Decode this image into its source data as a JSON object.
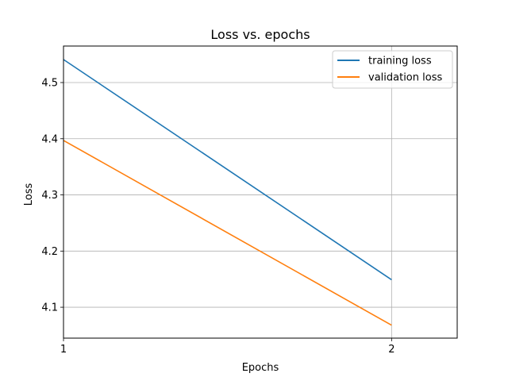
{
  "chart_data": {
    "type": "line",
    "title": "Loss vs. epochs",
    "xlabel": "Epochs",
    "ylabel": "Loss",
    "x": [
      1,
      2
    ],
    "x_ticks": [
      "1",
      "2"
    ],
    "y_ticks": [
      "4.1",
      "4.2",
      "4.3",
      "4.4",
      "4.5"
    ],
    "xlim": [
      1,
      2.2
    ],
    "ylim": [
      4.045,
      4.565
    ],
    "grid": true,
    "legend_position": "top-right",
    "series": [
      {
        "name": "training loss",
        "values": [
          4.541,
          4.149
        ],
        "color": "#1f77b4"
      },
      {
        "name": "validation loss",
        "values": [
          4.397,
          4.068
        ],
        "color": "#ff7f0e"
      }
    ]
  }
}
